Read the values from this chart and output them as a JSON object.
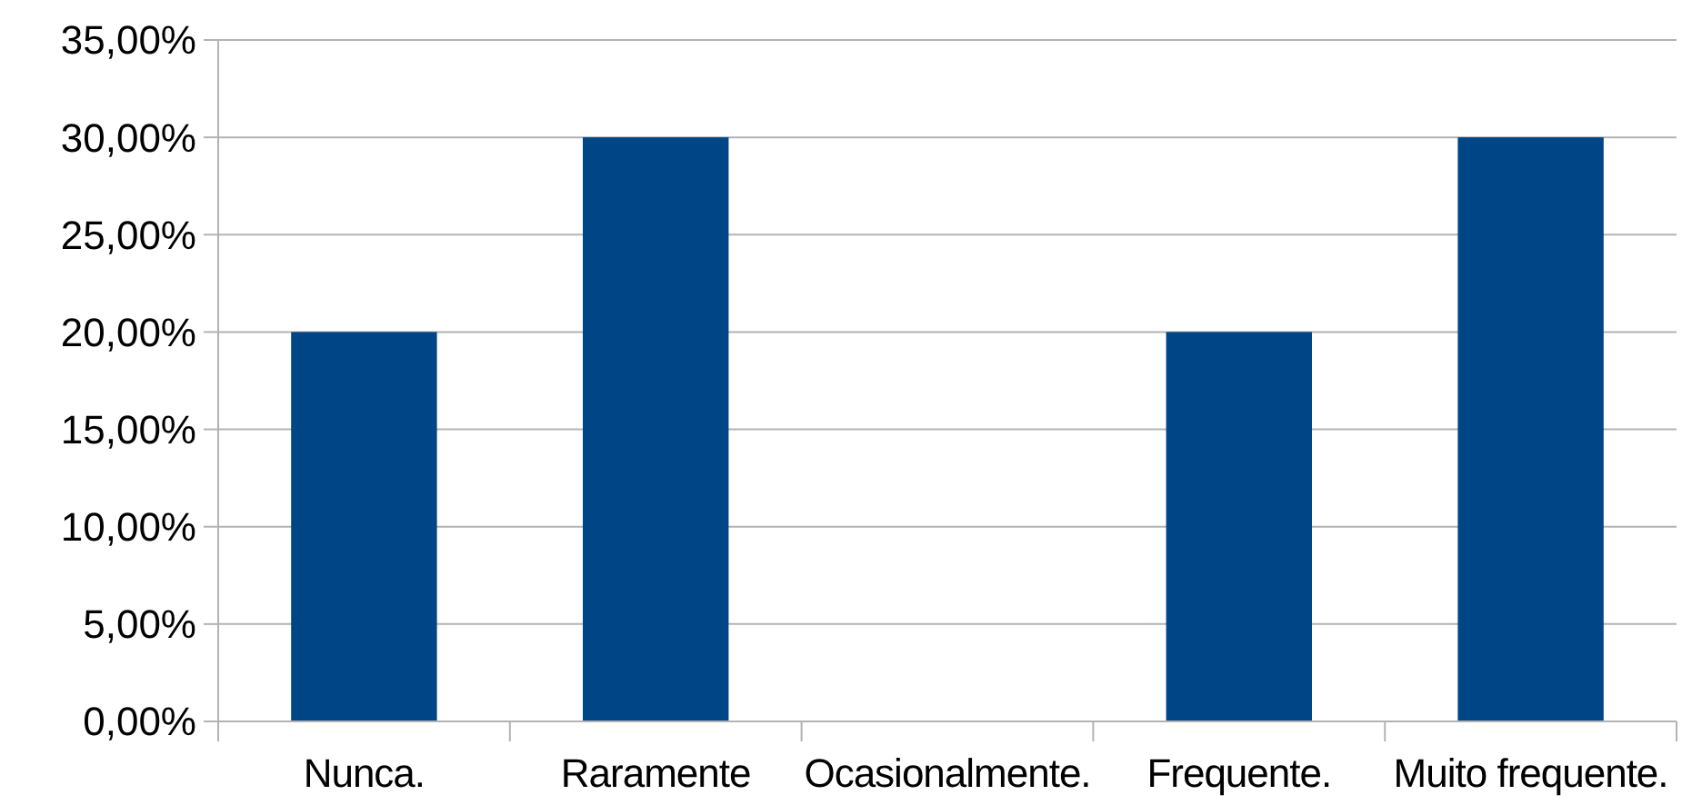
{
  "chart_data": {
    "type": "bar",
    "categories": [
      "Nunca.",
      "Raramente",
      "Ocasionalmente.",
      "Frequente.",
      "Muito frequente."
    ],
    "values": [
      20,
      30,
      0,
      20,
      30
    ],
    "color": "#004586",
    "ylim": [
      0,
      35
    ],
    "yticks": [
      {
        "value": 0,
        "label": "0,00%"
      },
      {
        "value": 5,
        "label": "5,00%"
      },
      {
        "value": 10,
        "label": "10,00%"
      },
      {
        "value": 15,
        "label": "15,00%"
      },
      {
        "value": 20,
        "label": "20,00%"
      },
      {
        "value": 25,
        "label": "25,00%"
      },
      {
        "value": 30,
        "label": "30,00%"
      },
      {
        "value": 35,
        "label": "35,00%"
      }
    ],
    "grid": "y"
  }
}
